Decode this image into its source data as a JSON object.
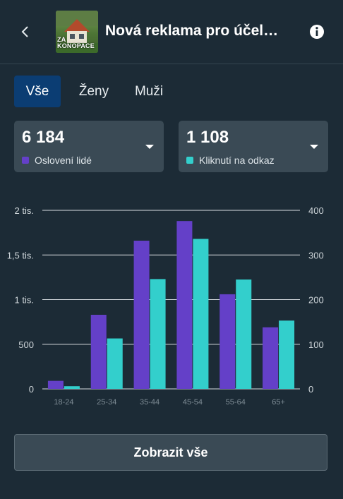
{
  "header": {
    "title": "Nová reklama pro účel…",
    "thumbnail_text": "ZA KONOPACE"
  },
  "tabs": [
    {
      "label": "Vše",
      "active": true
    },
    {
      "label": "Ženy",
      "active": false
    },
    {
      "label": "Muži",
      "active": false
    }
  ],
  "metrics": [
    {
      "value": "6 184",
      "label": "Oslovení lidé",
      "color": "#6440c8"
    },
    {
      "value": "1 108",
      "label": "Kliknutí na odkaz",
      "color": "#33cfcc"
    }
  ],
  "chart_data": {
    "type": "bar",
    "categories": [
      "18-24",
      "25-34",
      "35-44",
      "45-54",
      "55-64",
      "65+"
    ],
    "series": [
      {
        "name": "Oslovení lidé",
        "axis": "left",
        "color": "#6440c8",
        "values": [
          90,
          830,
          1660,
          1880,
          1060,
          690
        ]
      },
      {
        "name": "Kliknutí na odkaz",
        "axis": "right",
        "color": "#33cfcc",
        "values": [
          6,
          113,
          246,
          336,
          245,
          153
        ]
      }
    ],
    "y_left": {
      "ticks": [
        "0",
        "500",
        "1 tis.",
        "1,5 tis.",
        "2 tis."
      ],
      "range": [
        0,
        2000
      ]
    },
    "y_right": {
      "ticks": [
        "0",
        "100",
        "200",
        "300",
        "400"
      ],
      "range": [
        0,
        400
      ]
    },
    "grid": true
  },
  "footer": {
    "show_all_label": "Zobrazit vše"
  }
}
